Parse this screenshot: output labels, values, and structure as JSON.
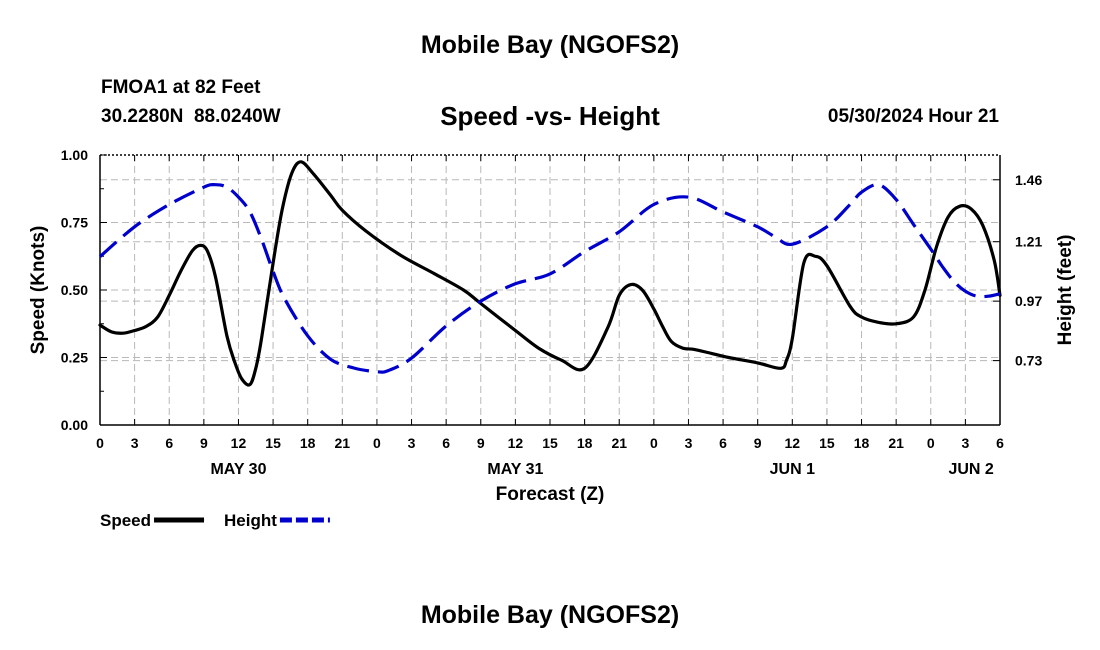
{
  "page": {
    "title": "Mobile Bay (NGOFS2)",
    "bottom_title": "Mobile Bay (NGOFS2)",
    "station_name": "FMOA1 at 82 Feet",
    "station_coords": "30.2280N  88.0240W",
    "run_time": "05/30/2024 Hour 21"
  },
  "chart_data": {
    "type": "line",
    "title": "Speed -vs- Height",
    "xlabel": "Forecast (Z)",
    "ylabel": "Speed (Knots)",
    "y2label": "Height (feet)",
    "x_units": "hours since 2024-05-30 00Z",
    "xlim": [
      0,
      78
    ],
    "ylim": [
      0,
      1
    ],
    "y2lim": [
      0.47,
      1.56
    ],
    "xticks": [
      0,
      3,
      6,
      9,
      12,
      15,
      18,
      21,
      24,
      27,
      30,
      33,
      36,
      39,
      42,
      45,
      48,
      51,
      54,
      57,
      60,
      63,
      66,
      69,
      72,
      75,
      78
    ],
    "xtick_labels": [
      "0",
      "3",
      "6",
      "9",
      "12",
      "15",
      "18",
      "21",
      "0",
      "3",
      "6",
      "9",
      "12",
      "15",
      "18",
      "21",
      "0",
      "3",
      "6",
      "9",
      "12",
      "15",
      "18",
      "21",
      "0",
      "3",
      "6"
    ],
    "yticks": [
      0,
      0.25,
      0.5,
      0.75,
      1.0
    ],
    "ytick_labels": [
      "0.00",
      "0.25",
      "0.50",
      "0.75",
      "1.00"
    ],
    "y2ticks": [
      0.73,
      0.97,
      1.21,
      1.46
    ],
    "y2tick_labels": [
      "0.73",
      "0.97",
      "1.21",
      "1.46"
    ],
    "date_labels": [
      {
        "x": 12,
        "label": "MAY 30"
      },
      {
        "x": 36,
        "label": "MAY 31"
      },
      {
        "x": 60,
        "label": "JUN 1"
      },
      {
        "x": 75.5,
        "label": "JUN 2"
      }
    ],
    "grid": true,
    "legend_position": "bottom-left",
    "series": [
      {
        "name": "Speed",
        "axis": "left",
        "color": "#000000",
        "style": "solid",
        "x": [
          0,
          1,
          2,
          3,
          4,
          5,
          6,
          7,
          8,
          8.7,
          9.3,
          10,
          11,
          11.7,
          12.3,
          13,
          13.5,
          14,
          15,
          15.8,
          16.6,
          17.4,
          18.5,
          20,
          21,
          23,
          26,
          29,
          31.5,
          33,
          36,
          38,
          40,
          42,
          44,
          45,
          46,
          47,
          48,
          48.7,
          49.5,
          50.5,
          51.5,
          53,
          54.5,
          57,
          59,
          59.5,
          60,
          61,
          62,
          63,
          65,
          66,
          67.5,
          69,
          70.5,
          71.5,
          72.5,
          73.5,
          74.5,
          75.5,
          76.5,
          77.5,
          78
        ],
        "values": [
          0.37,
          0.345,
          0.34,
          0.35,
          0.365,
          0.4,
          0.48,
          0.57,
          0.645,
          0.665,
          0.645,
          0.55,
          0.33,
          0.23,
          0.17,
          0.15,
          0.21,
          0.32,
          0.6,
          0.8,
          0.93,
          0.975,
          0.93,
          0.85,
          0.795,
          0.72,
          0.63,
          0.56,
          0.5,
          0.45,
          0.35,
          0.285,
          0.24,
          0.21,
          0.36,
          0.48,
          0.52,
          0.5,
          0.43,
          0.37,
          0.31,
          0.285,
          0.28,
          0.265,
          0.25,
          0.23,
          0.21,
          0.24,
          0.32,
          0.6,
          0.625,
          0.59,
          0.44,
          0.4,
          0.38,
          0.375,
          0.4,
          0.5,
          0.66,
          0.77,
          0.81,
          0.8,
          0.74,
          0.61,
          0.48
        ]
      },
      {
        "name": "Height",
        "axis": "right",
        "color": "#0000cc",
        "style": "dashed",
        "x": [
          0,
          3,
          6,
          9,
          10,
          11,
          12,
          13,
          14,
          15,
          16,
          18,
          20,
          22,
          24,
          25,
          27,
          30,
          33,
          36,
          39,
          42,
          45,
          48,
          51,
          54,
          57,
          58.5,
          60,
          63,
          65,
          66,
          67.5,
          69,
          70.5,
          72,
          73,
          74,
          75,
          76,
          77,
          78
        ],
        "values": [
          1.15,
          1.27,
          1.36,
          1.43,
          1.44,
          1.43,
          1.39,
          1.33,
          1.22,
          1.09,
          0.98,
          0.83,
          0.735,
          0.7,
          0.685,
          0.69,
          0.74,
          0.87,
          0.97,
          1.04,
          1.08,
          1.17,
          1.25,
          1.36,
          1.39,
          1.33,
          1.27,
          1.23,
          1.2,
          1.27,
          1.36,
          1.41,
          1.44,
          1.38,
          1.28,
          1.18,
          1.11,
          1.05,
          1.01,
          0.99,
          0.99,
          1.0
        ]
      }
    ]
  }
}
